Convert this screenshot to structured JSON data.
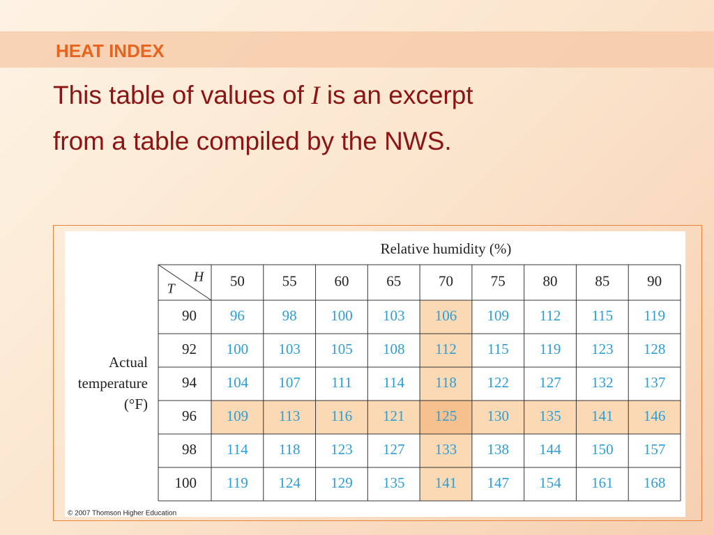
{
  "header": {
    "title": "HEAT INDEX"
  },
  "body": {
    "line1_start": "This table of values of",
    "variable": "I",
    "line1_end": "is an excerpt",
    "line2": "from a table compiled by the NWS."
  },
  "table": {
    "column_header": "Relative humidity (%)",
    "corner_column_symbol": "H",
    "corner_row_symbol": "T",
    "row_header_lines": [
      "Actual",
      "temperature",
      "(°F)"
    ],
    "columns": [
      50,
      55,
      60,
      65,
      70,
      75,
      80,
      85,
      90
    ],
    "rows": [
      {
        "label": 90,
        "values": [
          96,
          98,
          100,
          103,
          106,
          109,
          112,
          115,
          119
        ]
      },
      {
        "label": 92,
        "values": [
          100,
          103,
          105,
          108,
          112,
          115,
          119,
          123,
          128
        ]
      },
      {
        "label": 94,
        "values": [
          104,
          107,
          111,
          114,
          118,
          122,
          127,
          132,
          137
        ]
      },
      {
        "label": 96,
        "values": [
          109,
          113,
          116,
          121,
          125,
          130,
          135,
          141,
          146
        ]
      },
      {
        "label": 98,
        "values": [
          114,
          118,
          123,
          127,
          133,
          138,
          144,
          150,
          157
        ]
      },
      {
        "label": 100,
        "values": [
          119,
          124,
          129,
          135,
          141,
          147,
          154,
          161,
          168
        ]
      }
    ],
    "highlight_row": 3,
    "highlight_column": 4
  },
  "footer": {
    "credit": "© 2007 Thomson Higher Education"
  }
}
